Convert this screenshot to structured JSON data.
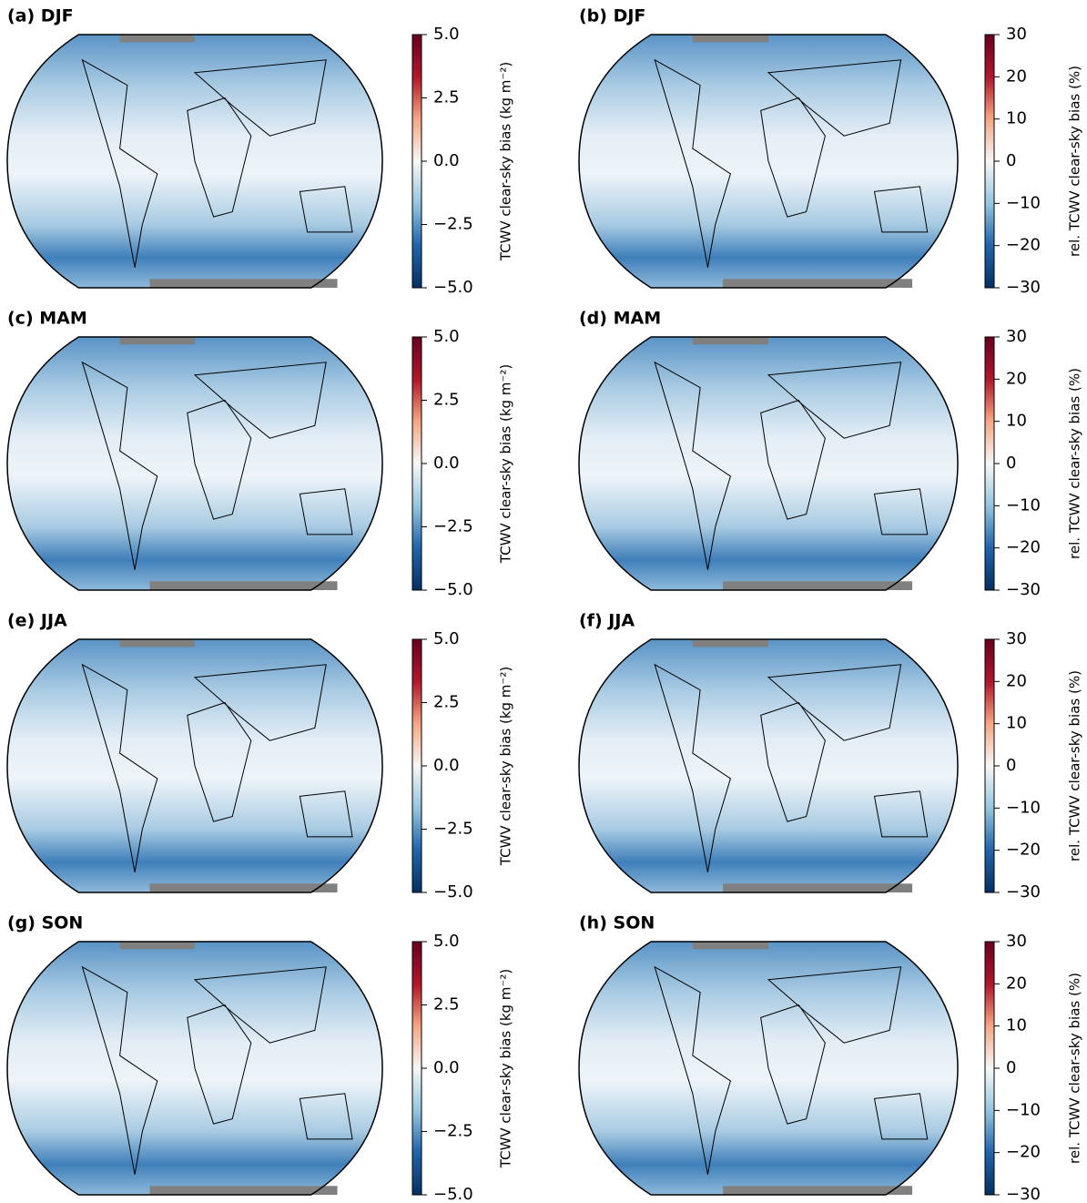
{
  "panels": [
    {
      "title": "(a) DJF",
      "colorbar": {
        "label": "TCWV clear-sky bias (kg m⁻²)",
        "lim": [
          -5,
          5
        ],
        "ticks": [
          {
            "value": 5,
            "label": "5.0"
          },
          {
            "value": 2.5,
            "label": "2.5"
          },
          {
            "value": 0,
            "label": "0.0"
          },
          {
            "value": -2.5,
            "label": "−2.5"
          },
          {
            "value": -5,
            "label": "−5.0"
          }
        ]
      }
    },
    {
      "title": "(b) DJF",
      "colorbar": {
        "label": "rel. TCWV clear-sky bias (%)",
        "lim": [
          -30,
          30
        ],
        "ticks": [
          30,
          20,
          10,
          0,
          {
            "value": -10,
            "label": "−10"
          },
          {
            "value": -20,
            "label": "−20"
          },
          {
            "value": -30,
            "label": "−30"
          }
        ]
      }
    },
    {
      "title": "(c) MAM",
      "colorbar": {
        "label": "TCWV clear-sky bias (kg m⁻²)",
        "lim": [
          -5,
          5
        ],
        "ticks": [
          {
            "value": 5,
            "label": "5.0"
          },
          {
            "value": 2.5,
            "label": "2.5"
          },
          {
            "value": 0,
            "label": "0.0"
          },
          {
            "value": -2.5,
            "label": "−2.5"
          },
          {
            "value": -5,
            "label": "−5.0"
          }
        ]
      }
    },
    {
      "title": "(d) MAM",
      "colorbar": {
        "label": "rel. TCWV clear-sky bias (%)",
        "lim": [
          -30,
          30
        ],
        "ticks": [
          30,
          20,
          10,
          0,
          {
            "value": -10,
            "label": "−10"
          },
          {
            "value": -20,
            "label": "−20"
          },
          {
            "value": -30,
            "label": "−30"
          }
        ]
      }
    },
    {
      "title": "(e) JJA",
      "colorbar": {
        "label": "TCWV clear-sky bias (kg m⁻²)",
        "lim": [
          -5,
          5
        ],
        "ticks": [
          {
            "value": 5,
            "label": "5.0"
          },
          {
            "value": 2.5,
            "label": "2.5"
          },
          {
            "value": 0,
            "label": "0.0"
          },
          {
            "value": -2.5,
            "label": "−2.5"
          },
          {
            "value": -5,
            "label": "−5.0"
          }
        ]
      }
    },
    {
      "title": "(f) JJA",
      "colorbar": {
        "label": "rel. TCWV clear-sky bias (%)",
        "lim": [
          -30,
          30
        ],
        "ticks": [
          30,
          20,
          10,
          0,
          {
            "value": -10,
            "label": "−10"
          },
          {
            "value": -20,
            "label": "−20"
          },
          {
            "value": -30,
            "label": "−30"
          }
        ]
      }
    },
    {
      "title": "(g) SON",
      "colorbar": {
        "label": "TCWV clear-sky bias (kg m⁻²)",
        "lim": [
          -5,
          5
        ],
        "ticks": [
          {
            "value": 5,
            "label": "5.0"
          },
          {
            "value": 2.5,
            "label": "2.5"
          },
          {
            "value": 0,
            "label": "0.0"
          },
          {
            "value": -2.5,
            "label": "−2.5"
          },
          {
            "value": -5,
            "label": "−5.0"
          }
        ]
      }
    },
    {
      "title": "(h) SON",
      "colorbar": {
        "label": "rel. TCWV clear-sky bias (%)",
        "lim": [
          -30,
          30
        ],
        "ticks": [
          30,
          20,
          10,
          0,
          {
            "value": -10,
            "label": "−10"
          },
          {
            "value": -20,
            "label": "−20"
          },
          {
            "value": -30,
            "label": "−30"
          }
        ]
      }
    }
  ]
}
